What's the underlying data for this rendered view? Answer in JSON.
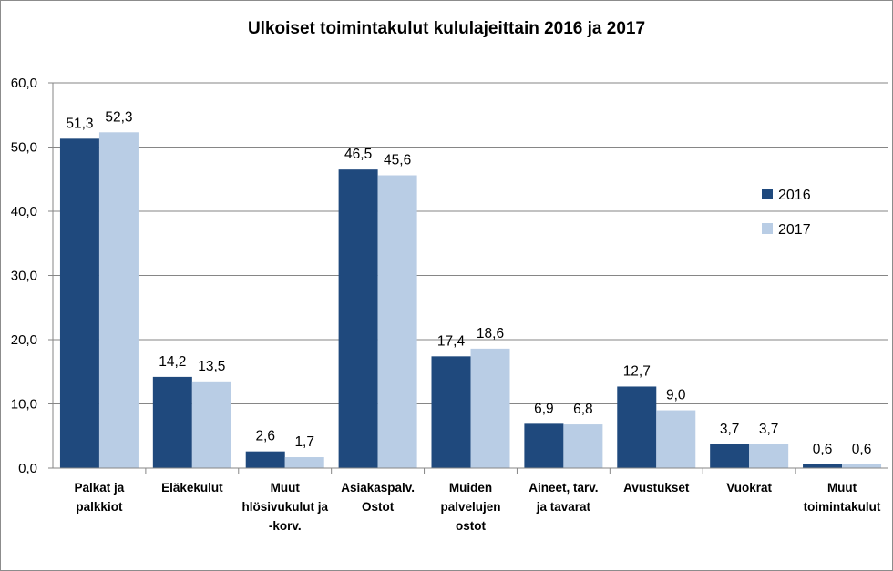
{
  "chart_data": {
    "type": "bar",
    "title": "Ulkoiset  toimintakulut  kululajeittain  2016 ja 2017",
    "categories": [
      [
        "Palkat ja",
        "palkkiot"
      ],
      [
        "Eläkekulut"
      ],
      [
        "Muut",
        "hlösivukulut ja",
        "-korv."
      ],
      [
        "Asiakaspalv.",
        "Ostot"
      ],
      [
        "Muiden",
        "palvelujen",
        "ostot"
      ],
      [
        "Aineet, tarv.",
        "ja tavarat"
      ],
      [
        "Avustukset"
      ],
      [
        "Vuokrat"
      ],
      [
        "Muut",
        "toimintakulut"
      ]
    ],
    "series": [
      {
        "name": "2016",
        "color": "#1f497d",
        "values": [
          51.3,
          14.2,
          2.6,
          46.5,
          17.4,
          6.9,
          12.7,
          3.7,
          0.6
        ],
        "labels": [
          "51,3",
          "14,2",
          "2,6",
          "46,5",
          "17,4",
          "6,9",
          "12,7",
          "3,7",
          "0,6"
        ]
      },
      {
        "name": "2017",
        "color": "#b9cde5",
        "values": [
          52.3,
          13.5,
          1.7,
          45.6,
          18.6,
          6.8,
          9.0,
          3.7,
          0.6
        ],
        "labels": [
          "52,3",
          "13,5",
          "1,7",
          "45,6",
          "18,6",
          "6,8",
          "9,0",
          "3,7",
          "0,6"
        ]
      }
    ],
    "ylim": [
      0,
      60
    ],
    "yticks": [
      0,
      10,
      20,
      30,
      40,
      50,
      60
    ],
    "ytick_labels": [
      "0,0",
      "10,0",
      "20,0",
      "30,0",
      "40,0",
      "50,0",
      "60,0"
    ],
    "grid": true,
    "legend_position": "right",
    "xlabel": "",
    "ylabel": ""
  }
}
